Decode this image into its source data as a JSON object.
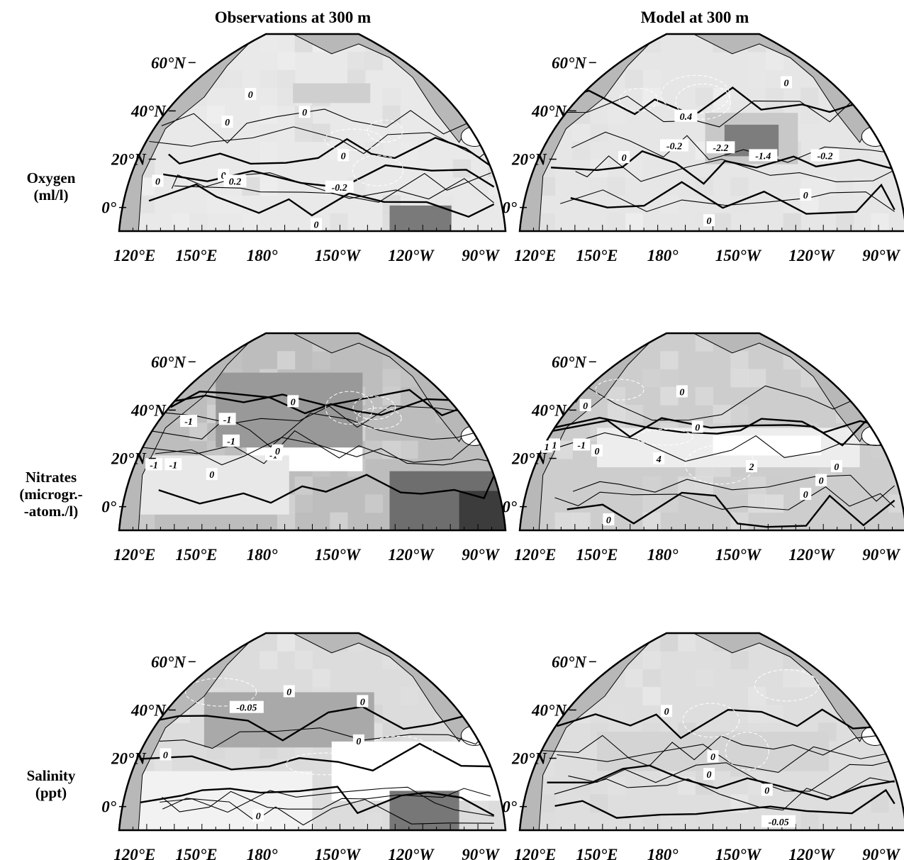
{
  "columns": [
    "Observations at 300 m",
    "Model at 300 m"
  ],
  "rows": [
    {
      "label_lines": [
        "Oxygen",
        "(ml/l)"
      ],
      "panels": [
        {
          "contour_labels": [
            "0",
            "0",
            "0",
            "0",
            "0",
            "0",
            "0",
            "0.2",
            "-0.2"
          ]
        },
        {
          "contour_labels": [
            "0",
            "0",
            "0",
            "0",
            "0.4",
            "-0.2",
            "-2.2",
            "-1.4",
            "-0.2"
          ]
        }
      ]
    },
    {
      "label_lines": [
        "Nitrates",
        "(microgr.-",
        "-atom./l)"
      ],
      "panels": [
        {
          "contour_labels": [
            "0",
            "-1",
            "-1",
            "-1",
            "-1",
            "-1",
            "0",
            "0",
            "-1"
          ]
        },
        {
          "contour_labels": [
            "0",
            "0",
            "0",
            "0",
            "-1",
            "1",
            "1",
            "0",
            "4",
            "2",
            "0",
            "0",
            "0"
          ]
        }
      ]
    },
    {
      "label_lines": [
        "Salinity",
        "(ppt)"
      ],
      "panels": [
        {
          "contour_labels": [
            "0",
            "-0.05",
            "0",
            "0",
            "0",
            "0"
          ]
        },
        {
          "contour_labels": [
            "0",
            "0",
            "0",
            "0",
            "-0.05"
          ]
        }
      ]
    }
  ],
  "lat_ticks": [
    "60°N",
    "40°N",
    "20°N",
    "0°"
  ],
  "lon_ticks_left": [
    "120°E",
    "150°E",
    "180°",
    "150°W",
    "120°W",
    "90°W"
  ],
  "lon_ticks_right": [
    "120°E",
    "150°E",
    "180°",
    "150°W",
    "120°W",
    "90°W"
  ],
  "colors": {
    "land": "#b8b8b8",
    "ocean_base": "#e6e6e6",
    "frame": "#000000"
  }
}
